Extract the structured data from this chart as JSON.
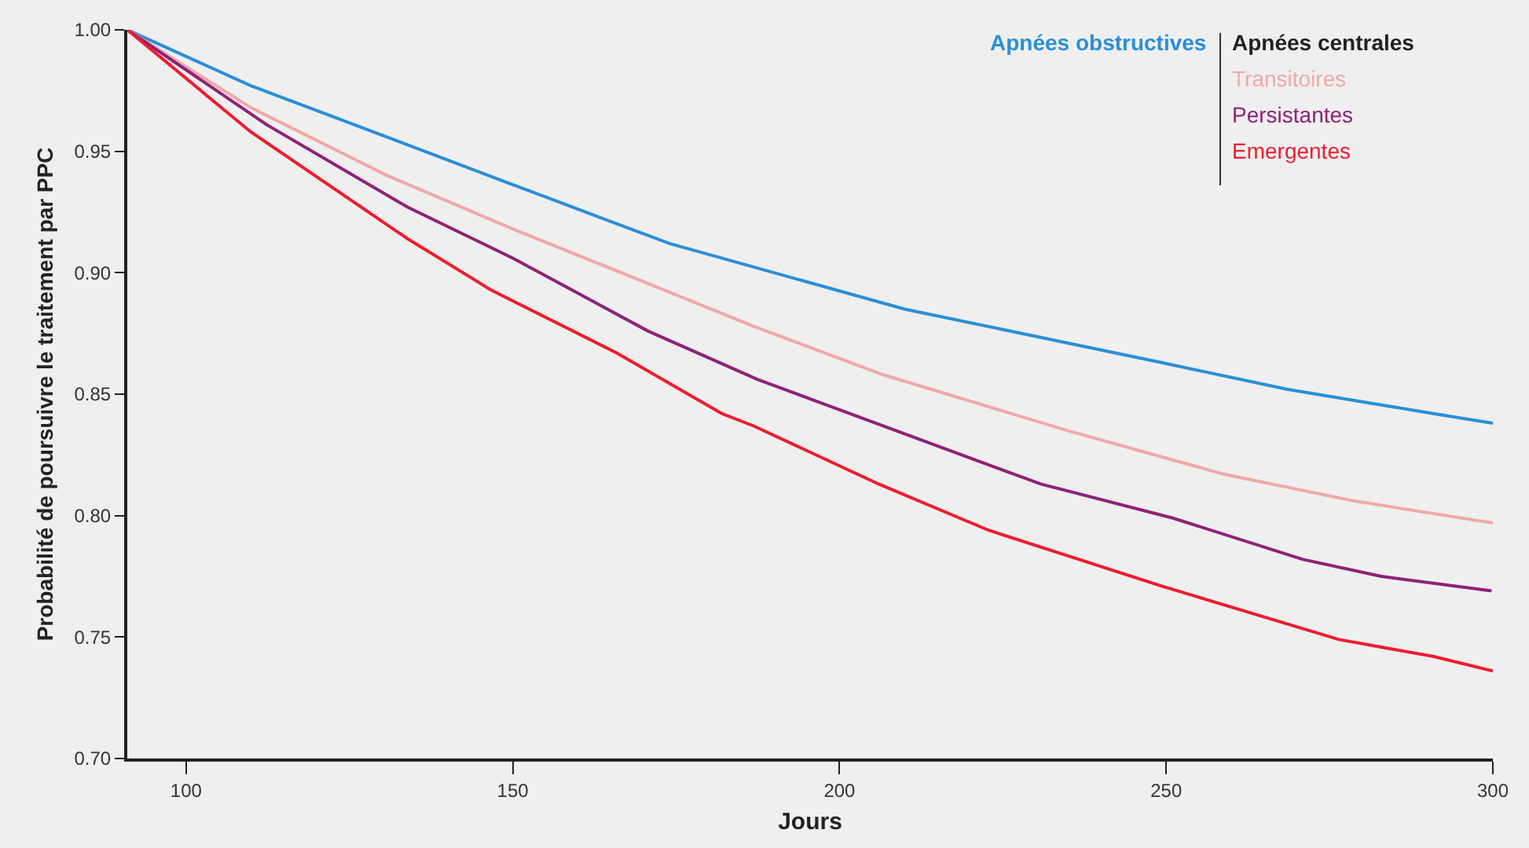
{
  "chart_data": {
    "type": "line",
    "xlabel": "Jours",
    "ylabel": "Probabilité de poursuivre le traitement par PPC",
    "legend_title": "Apnées centrales",
    "legend": "top right",
    "line_style": "solid",
    "grid": false,
    "xlim": [
      91,
      300
    ],
    "xticks": [
      100,
      150,
      200,
      250,
      300
    ],
    "ylim": [
      0.7,
      1.0
    ],
    "yticks": [
      {
        "value": 0.7,
        "label": "0.70"
      },
      {
        "value": 0.75,
        "label": "0.75"
      },
      {
        "value": 0.8,
        "label": "0.80"
      },
      {
        "value": 0.85,
        "label": "0.85"
      },
      {
        "value": 0.9,
        "label": "0.90"
      },
      {
        "value": 0.95,
        "label": "0.95"
      },
      {
        "value": 1.0,
        "label": "1.00"
      }
    ],
    "series": [
      {
        "name": "Apnées obstructives",
        "color": "#2a8fd6",
        "x": [
          91,
          109.9,
          148.3,
          174,
          210,
          249.3,
          268.5,
          290.9,
          300
        ],
        "values": [
          1.0,
          0.977,
          0.938,
          0.912,
          0.885,
          0.863,
          0.852,
          0.842,
          0.838
        ]
      },
      {
        "name": "Transitoires",
        "color": "#f0a8a8",
        "x": [
          91,
          109.9,
          130.8,
          150,
          174,
          186.8,
          206.7,
          234.9,
          258.9,
          278.8,
          300
        ],
        "values": [
          1.0,
          0.968,
          0.94,
          0.918,
          0.892,
          0.878,
          0.858,
          0.835,
          0.817,
          0.806,
          0.797
        ]
      },
      {
        "name": "Persistantes",
        "color": "#8e2278",
        "x": [
          91,
          112.3,
          133.9,
          150,
          170.7,
          187.5,
          230.8,
          251,
          270.9,
          282.9,
          299.8
        ],
        "values": [
          1.0,
          0.961,
          0.927,
          0.906,
          0.876,
          0.856,
          0.813,
          0.799,
          0.782,
          0.775,
          0.769
        ]
      },
      {
        "name": "Emergentes",
        "color": "#ee1c2e",
        "x": [
          91,
          109.9,
          133.9,
          144.2,
          146.6,
          165.9,
          182,
          186.8,
          206,
          222.8,
          249.3,
          276.4,
          290.9,
          300
        ],
        "values": [
          1.0,
          0.958,
          0.914,
          0.897,
          0.893,
          0.867,
          0.842,
          0.837,
          0.813,
          0.794,
          0.771,
          0.749,
          0.742,
          0.736
        ]
      }
    ]
  }
}
